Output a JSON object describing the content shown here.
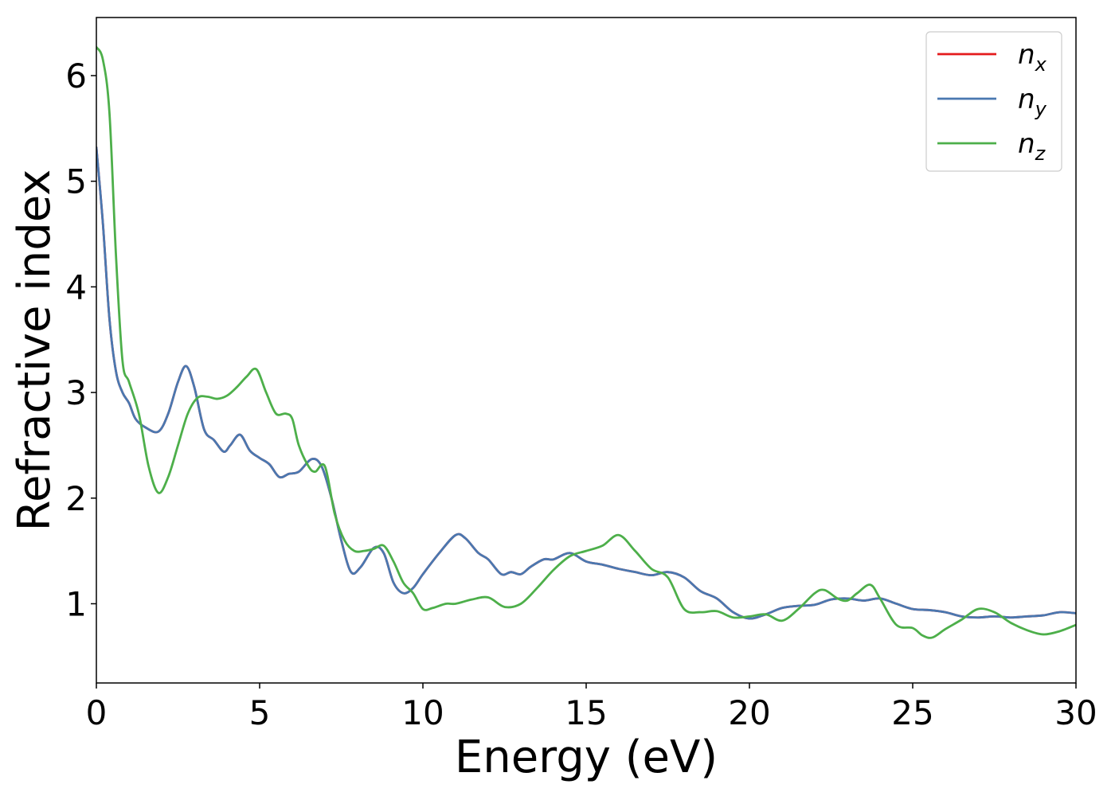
{
  "chart_data": {
    "type": "line",
    "title": "",
    "xlabel": "Energy (eV)",
    "ylabel": "Refractive index",
    "xlim": [
      0,
      30
    ],
    "ylim": [
      0.25,
      6.55
    ],
    "xticks": [
      0,
      5,
      10,
      15,
      20,
      25,
      30
    ],
    "yticks": [
      1,
      2,
      3,
      4,
      5,
      6
    ],
    "grid": false,
    "legend_placement": "top-right",
    "series": [
      {
        "name": "n",
        "subscript": "x",
        "color": "#e41a1c",
        "x": [
          0,
          0.2,
          0.4,
          0.6,
          0.8,
          1.0,
          1.2,
          1.5,
          1.9,
          2.2,
          2.5,
          2.75,
          3.0,
          3.3,
          3.6,
          3.9,
          4.1,
          4.4,
          4.7,
          5.0,
          5.3,
          5.6,
          5.9,
          6.2,
          6.6,
          6.9,
          7.2,
          7.5,
          7.8,
          8.1,
          8.5,
          8.8,
          9.1,
          9.4,
          9.7,
          10.0,
          10.5,
          11.0,
          11.3,
          11.7,
          12.0,
          12.4,
          12.7,
          13.0,
          13.3,
          13.7,
          14.0,
          14.5,
          15.0,
          15.5,
          16.0,
          16.5,
          17.0,
          17.5,
          18.0,
          18.5,
          19.0,
          19.5,
          20.0,
          20.5,
          21.0,
          21.5,
          22.0,
          22.5,
          23.0,
          23.5,
          24.0,
          24.5,
          25.0,
          25.5,
          26.0,
          26.5,
          27.0,
          27.5,
          28.0,
          28.5,
          29.0,
          29.5,
          30.0
        ],
        "values": [
          5.32,
          4.6,
          3.7,
          3.2,
          3.0,
          2.9,
          2.75,
          2.67,
          2.63,
          2.8,
          3.1,
          3.25,
          3.05,
          2.65,
          2.55,
          2.44,
          2.5,
          2.6,
          2.45,
          2.38,
          2.32,
          2.2,
          2.23,
          2.25,
          2.37,
          2.3,
          2.0,
          1.6,
          1.3,
          1.35,
          1.53,
          1.48,
          1.2,
          1.1,
          1.15,
          1.28,
          1.48,
          1.65,
          1.62,
          1.48,
          1.42,
          1.28,
          1.3,
          1.28,
          1.35,
          1.42,
          1.42,
          1.48,
          1.4,
          1.37,
          1.33,
          1.3,
          1.27,
          1.3,
          1.25,
          1.12,
          1.05,
          0.92,
          0.86,
          0.9,
          0.96,
          0.98,
          0.99,
          1.04,
          1.05,
          1.03,
          1.05,
          1.0,
          0.95,
          0.94,
          0.92,
          0.88,
          0.87,
          0.88,
          0.87,
          0.88,
          0.89,
          0.92,
          0.91
        ]
      },
      {
        "name": "n",
        "subscript": "y",
        "color": "#4a78b0",
        "x": [
          0,
          0.2,
          0.4,
          0.6,
          0.8,
          1.0,
          1.2,
          1.5,
          1.9,
          2.2,
          2.5,
          2.75,
          3.0,
          3.3,
          3.6,
          3.9,
          4.1,
          4.4,
          4.7,
          5.0,
          5.3,
          5.6,
          5.9,
          6.2,
          6.6,
          6.9,
          7.2,
          7.5,
          7.8,
          8.1,
          8.5,
          8.8,
          9.1,
          9.4,
          9.7,
          10.0,
          10.5,
          11.0,
          11.3,
          11.7,
          12.0,
          12.4,
          12.7,
          13.0,
          13.3,
          13.7,
          14.0,
          14.5,
          15.0,
          15.5,
          16.0,
          16.5,
          17.0,
          17.5,
          18.0,
          18.5,
          19.0,
          19.5,
          20.0,
          20.5,
          21.0,
          21.5,
          22.0,
          22.5,
          23.0,
          23.5,
          24.0,
          24.5,
          25.0,
          25.5,
          26.0,
          26.5,
          27.0,
          27.5,
          28.0,
          28.5,
          29.0,
          29.5,
          30.0
        ],
        "values": [
          5.32,
          4.6,
          3.7,
          3.2,
          3.0,
          2.9,
          2.75,
          2.67,
          2.63,
          2.8,
          3.1,
          3.25,
          3.05,
          2.65,
          2.55,
          2.44,
          2.5,
          2.6,
          2.45,
          2.38,
          2.32,
          2.2,
          2.23,
          2.25,
          2.37,
          2.3,
          2.0,
          1.6,
          1.3,
          1.35,
          1.53,
          1.48,
          1.2,
          1.1,
          1.15,
          1.28,
          1.48,
          1.65,
          1.62,
          1.48,
          1.42,
          1.28,
          1.3,
          1.28,
          1.35,
          1.42,
          1.42,
          1.48,
          1.4,
          1.37,
          1.33,
          1.3,
          1.27,
          1.3,
          1.25,
          1.12,
          1.05,
          0.92,
          0.86,
          0.9,
          0.96,
          0.98,
          0.99,
          1.04,
          1.05,
          1.03,
          1.05,
          1.0,
          0.95,
          0.94,
          0.92,
          0.88,
          0.87,
          0.88,
          0.87,
          0.88,
          0.89,
          0.92,
          0.91
        ]
      },
      {
        "name": "n",
        "subscript": "z",
        "color": "#4daf4a",
        "x": [
          0,
          0.2,
          0.4,
          0.6,
          0.8,
          1.0,
          1.3,
          1.6,
          1.9,
          2.2,
          2.5,
          2.8,
          3.1,
          3.4,
          3.7,
          4.0,
          4.3,
          4.6,
          4.9,
          5.2,
          5.5,
          5.8,
          6.0,
          6.2,
          6.5,
          6.7,
          7.0,
          7.3,
          7.6,
          7.9,
          8.2,
          8.5,
          8.8,
          9.1,
          9.4,
          9.7,
          10.0,
          10.3,
          10.7,
          11.0,
          11.5,
          12.0,
          12.5,
          13.0,
          13.5,
          14.0,
          14.5,
          15.0,
          15.5,
          16.0,
          16.5,
          17.0,
          17.5,
          18.0,
          18.5,
          19.0,
          19.5,
          20.0,
          20.5,
          21.0,
          21.5,
          22.0,
          22.3,
          22.7,
          23.0,
          23.3,
          23.7,
          24.0,
          24.5,
          25.0,
          25.3,
          25.6,
          26.0,
          26.5,
          27.0,
          27.5,
          28.0,
          28.5,
          29.0,
          29.5,
          30.0
        ],
        "values": [
          6.27,
          6.15,
          5.65,
          4.3,
          3.3,
          3.1,
          2.8,
          2.3,
          2.05,
          2.2,
          2.5,
          2.8,
          2.95,
          2.96,
          2.94,
          2.97,
          3.05,
          3.15,
          3.22,
          3.0,
          2.8,
          2.8,
          2.75,
          2.5,
          2.3,
          2.25,
          2.3,
          1.85,
          1.6,
          1.5,
          1.5,
          1.52,
          1.55,
          1.4,
          1.2,
          1.1,
          0.95,
          0.96,
          1.0,
          1.0,
          1.04,
          1.06,
          0.97,
          1.0,
          1.15,
          1.32,
          1.45,
          1.5,
          1.55,
          1.65,
          1.5,
          1.33,
          1.25,
          0.95,
          0.92,
          0.93,
          0.87,
          0.88,
          0.9,
          0.84,
          0.95,
          1.1,
          1.13,
          1.05,
          1.03,
          1.1,
          1.18,
          1.05,
          0.8,
          0.77,
          0.7,
          0.68,
          0.76,
          0.85,
          0.95,
          0.92,
          0.82,
          0.75,
          0.71,
          0.74,
          0.8
        ]
      }
    ]
  }
}
